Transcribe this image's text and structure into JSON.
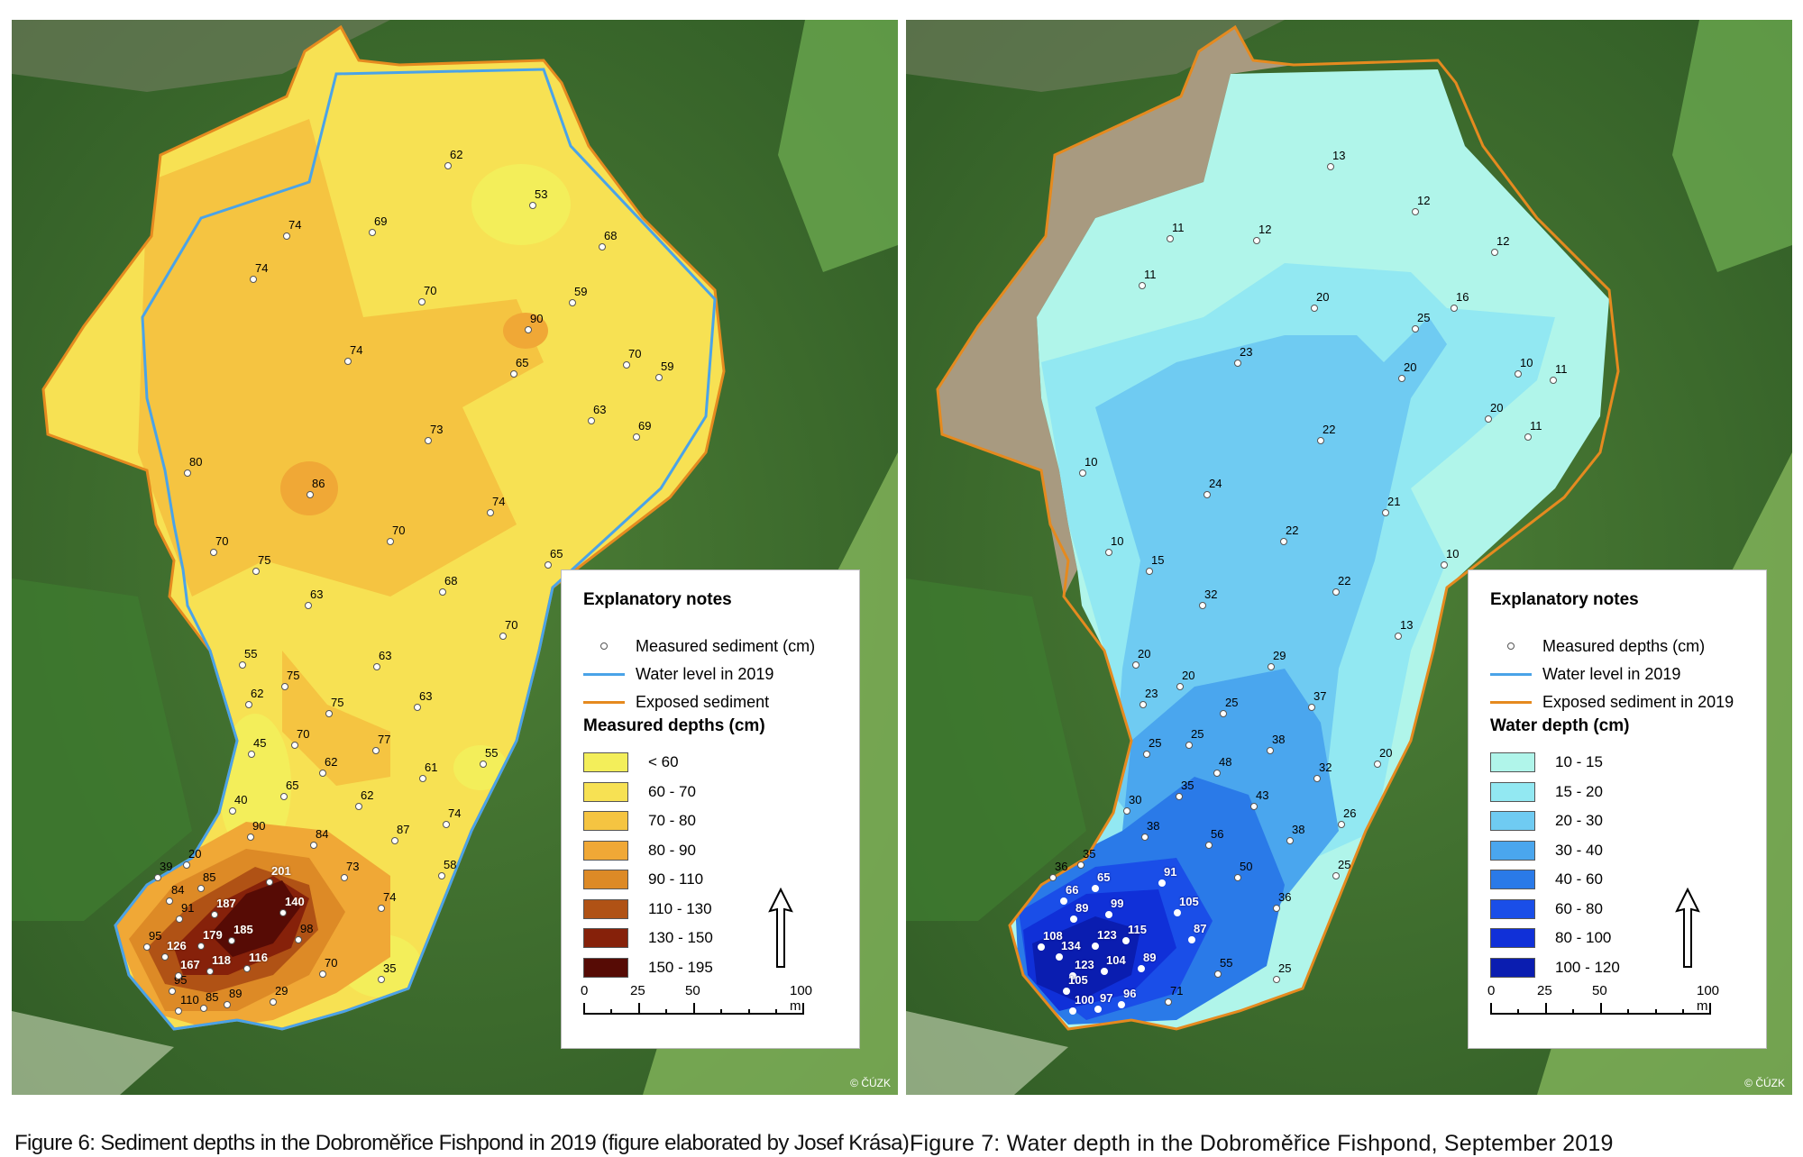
{
  "figure1": {
    "caption": "Figure 6: Sediment depths in the Dobroměřice Fishpond in 2019 (figure elaborated by Josef Krása)",
    "copyright": "© ČÚZK",
    "legend": {
      "title": "Explanatory notes",
      "point_label": "Measured sediment (cm)",
      "water_label": "Water level in 2019",
      "exposed_label": "Exposed sediment",
      "classes_title": "Measured depths (cm)",
      "classes": [
        {
          "label": "< 60",
          "color": "#f3ee5a"
        },
        {
          "label": "60 - 70",
          "color": "#f7e153"
        },
        {
          "label": "70 - 80",
          "color": "#f5c441"
        },
        {
          "label": "80 - 90",
          "color": "#f0a836"
        },
        {
          "label": "90 - 110",
          "color": "#dd8a26"
        },
        {
          "label": "110 - 130",
          "color": "#b05215"
        },
        {
          "label": "130 - 150",
          "color": "#86210a"
        },
        {
          "label": "150 - 195",
          "color": "#560b05"
        }
      ],
      "scale": {
        "ticks": [
          "0",
          "25",
          "50",
          "100 m"
        ]
      }
    },
    "points": [
      {
        "v": "62",
        "x": 484,
        "y": 162
      },
      {
        "v": "53",
        "x": 578,
        "y": 206
      },
      {
        "v": "74",
        "x": 305,
        "y": 240
      },
      {
        "v": "69",
        "x": 400,
        "y": 236
      },
      {
        "v": "68",
        "x": 655,
        "y": 252
      },
      {
        "v": "74",
        "x": 268,
        "y": 288
      },
      {
        "v": "70",
        "x": 455,
        "y": 313
      },
      {
        "v": "59",
        "x": 622,
        "y": 314
      },
      {
        "v": "90",
        "x": 573,
        "y": 344
      },
      {
        "v": "74",
        "x": 373,
        "y": 379
      },
      {
        "v": "65",
        "x": 557,
        "y": 393
      },
      {
        "v": "70",
        "x": 682,
        "y": 383
      },
      {
        "v": "59",
        "x": 718,
        "y": 397
      },
      {
        "v": "63",
        "x": 643,
        "y": 445
      },
      {
        "v": "69",
        "x": 693,
        "y": 463
      },
      {
        "v": "73",
        "x": 462,
        "y": 467
      },
      {
        "v": "80",
        "x": 195,
        "y": 503
      },
      {
        "v": "86",
        "x": 331,
        "y": 527
      },
      {
        "v": "74",
        "x": 531,
        "y": 547
      },
      {
        "v": "70",
        "x": 420,
        "y": 579
      },
      {
        "v": "70",
        "x": 224,
        "y": 591
      },
      {
        "v": "75",
        "x": 271,
        "y": 612
      },
      {
        "v": "65",
        "x": 595,
        "y": 605
      },
      {
        "v": "68",
        "x": 478,
        "y": 635
      },
      {
        "v": "63",
        "x": 329,
        "y": 650
      },
      {
        "v": "70",
        "x": 545,
        "y": 684
      },
      {
        "v": "55",
        "x": 256,
        "y": 716
      },
      {
        "v": "63",
        "x": 405,
        "y": 718
      },
      {
        "v": "75",
        "x": 303,
        "y": 740
      },
      {
        "v": "62",
        "x": 263,
        "y": 760
      },
      {
        "v": "75",
        "x": 352,
        "y": 770
      },
      {
        "v": "63",
        "x": 450,
        "y": 763
      },
      {
        "v": "45",
        "x": 266,
        "y": 815
      },
      {
        "v": "70",
        "x": 314,
        "y": 805
      },
      {
        "v": "77",
        "x": 404,
        "y": 811
      },
      {
        "v": "55",
        "x": 523,
        "y": 826
      },
      {
        "v": "62",
        "x": 345,
        "y": 836
      },
      {
        "v": "61",
        "x": 456,
        "y": 842
      },
      {
        "v": "65",
        "x": 302,
        "y": 862
      },
      {
        "v": "62",
        "x": 385,
        "y": 873
      },
      {
        "v": "40",
        "x": 245,
        "y": 878
      },
      {
        "v": "74",
        "x": 482,
        "y": 893
      },
      {
        "v": "90",
        "x": 265,
        "y": 907
      },
      {
        "v": "84",
        "x": 335,
        "y": 916
      },
      {
        "v": "87",
        "x": 425,
        "y": 911
      },
      {
        "v": "73",
        "x": 369,
        "y": 952
      },
      {
        "v": "58",
        "x": 477,
        "y": 950
      },
      {
        "v": "39",
        "x": 162,
        "y": 952
      },
      {
        "v": "20",
        "x": 194,
        "y": 938
      },
      {
        "v": "85",
        "x": 210,
        "y": 964
      },
      {
        "v": "84",
        "x": 175,
        "y": 978
      },
      {
        "v": "74",
        "x": 410,
        "y": 986
      },
      {
        "v": "91",
        "x": 186,
        "y": 998
      },
      {
        "v": "95",
        "x": 150,
        "y": 1029
      },
      {
        "v": "98",
        "x": 318,
        "y": 1021
      },
      {
        "v": "70",
        "x": 345,
        "y": 1059
      },
      {
        "v": "35",
        "x": 410,
        "y": 1065
      },
      {
        "v": "95",
        "x": 178,
        "y": 1078
      },
      {
        "v": "110",
        "x": 185,
        "y": 1100
      },
      {
        "v": "85",
        "x": 213,
        "y": 1097
      },
      {
        "v": "89",
        "x": 239,
        "y": 1093
      },
      {
        "v": "29",
        "x": 290,
        "y": 1090
      },
      {
        "v": "201",
        "x": 286,
        "y": 957,
        "dark": true
      },
      {
        "v": "187",
        "x": 225,
        "y": 993,
        "dark": true
      },
      {
        "v": "140",
        "x": 301,
        "y": 991,
        "dark": true
      },
      {
        "v": "185",
        "x": 244,
        "y": 1022,
        "dark": true
      },
      {
        "v": "179",
        "x": 210,
        "y": 1028,
        "dark": true
      },
      {
        "v": "126",
        "x": 170,
        "y": 1040,
        "dark": true
      },
      {
        "v": "116",
        "x": 261,
        "y": 1053,
        "dark": true
      },
      {
        "v": "118",
        "x": 220,
        "y": 1056,
        "dark": true
      },
      {
        "v": "167",
        "x": 185,
        "y": 1061,
        "dark": true
      }
    ]
  },
  "figure2": {
    "caption": "Figure 7: Water depth in the Dobroměřice Fishpond, September 2019",
    "copyright": "© ČÚZK",
    "legend": {
      "title": "Explanatory notes",
      "point_label": "Measured depths (cm)",
      "water_label": "Water level in 2019",
      "exposed_label": "Exposed sediment in 2019",
      "classes_title": "Water depth (cm)",
      "classes": [
        {
          "label": "10 - 15",
          "color": "#b0f5ea"
        },
        {
          "label": "15 - 20",
          "color": "#92e8f2"
        },
        {
          "label": "20 - 30",
          "color": "#6fcbf2"
        },
        {
          "label": "30 - 40",
          "color": "#4aa6ee"
        },
        {
          "label": "40 - 60",
          "color": "#2a7ae8"
        },
        {
          "label": "60 - 80",
          "color": "#1a4ee8"
        },
        {
          "label": "80 - 100",
          "color": "#1030d8"
        },
        {
          "label": "100 - 120",
          "color": "#0a1db0"
        }
      ],
      "scale": {
        "ticks": [
          "0",
          "25",
          "50",
          "100 m"
        ]
      }
    },
    "points": [
      {
        "v": "13",
        "x": 471,
        "y": 163
      },
      {
        "v": "12",
        "x": 565,
        "y": 213
      },
      {
        "v": "11",
        "x": 293,
        "y": 243
      },
      {
        "v": "12",
        "x": 389,
        "y": 245
      },
      {
        "v": "12",
        "x": 653,
        "y": 258
      },
      {
        "v": "11",
        "x": 262,
        "y": 295
      },
      {
        "v": "16",
        "x": 608,
        "y": 320
      },
      {
        "v": "20",
        "x": 453,
        "y": 320
      },
      {
        "v": "25",
        "x": 565,
        "y": 343
      },
      {
        "v": "23",
        "x": 368,
        "y": 381
      },
      {
        "v": "20",
        "x": 550,
        "y": 398
      },
      {
        "v": "10",
        "x": 679,
        "y": 393
      },
      {
        "v": "11",
        "x": 718,
        "y": 400
      },
      {
        "v": "20",
        "x": 646,
        "y": 443
      },
      {
        "v": "11",
        "x": 690,
        "y": 463
      },
      {
        "v": "22",
        "x": 460,
        "y": 467
      },
      {
        "v": "10",
        "x": 196,
        "y": 503
      },
      {
        "v": "24",
        "x": 334,
        "y": 527
      },
      {
        "v": "21",
        "x": 532,
        "y": 547
      },
      {
        "v": "22",
        "x": 419,
        "y": 579
      },
      {
        "v": "10",
        "x": 225,
        "y": 591
      },
      {
        "v": "15",
        "x": 270,
        "y": 612
      },
      {
        "v": "10",
        "x": 597,
        "y": 605
      },
      {
        "v": "22",
        "x": 477,
        "y": 635
      },
      {
        "v": "32",
        "x": 329,
        "y": 650
      },
      {
        "v": "13",
        "x": 546,
        "y": 684
      },
      {
        "v": "20",
        "x": 255,
        "y": 716
      },
      {
        "v": "29",
        "x": 405,
        "y": 718
      },
      {
        "v": "20",
        "x": 304,
        "y": 740
      },
      {
        "v": "23",
        "x": 263,
        "y": 760
      },
      {
        "v": "25",
        "x": 352,
        "y": 770
      },
      {
        "v": "37",
        "x": 450,
        "y": 763
      },
      {
        "v": "25",
        "x": 267,
        "y": 815
      },
      {
        "v": "25",
        "x": 314,
        "y": 805
      },
      {
        "v": "38",
        "x": 404,
        "y": 811
      },
      {
        "v": "20",
        "x": 523,
        "y": 826
      },
      {
        "v": "48",
        "x": 345,
        "y": 836
      },
      {
        "v": "32",
        "x": 456,
        "y": 842
      },
      {
        "v": "35",
        "x": 303,
        "y": 862
      },
      {
        "v": "43",
        "x": 386,
        "y": 873
      },
      {
        "v": "30",
        "x": 245,
        "y": 878
      },
      {
        "v": "26",
        "x": 483,
        "y": 893
      },
      {
        "v": "38",
        "x": 265,
        "y": 907
      },
      {
        "v": "56",
        "x": 336,
        "y": 916
      },
      {
        "v": "38",
        "x": 426,
        "y": 911
      },
      {
        "v": "50",
        "x": 368,
        "y": 952
      },
      {
        "v": "25",
        "x": 477,
        "y": 950
      },
      {
        "v": "36",
        "x": 163,
        "y": 952
      },
      {
        "v": "35",
        "x": 194,
        "y": 938
      },
      {
        "v": "36",
        "x": 411,
        "y": 986
      },
      {
        "v": "55",
        "x": 346,
        "y": 1059
      },
      {
        "v": "25",
        "x": 411,
        "y": 1065
      },
      {
        "v": "71",
        "x": 291,
        "y": 1090
      },
      {
        "v": "65",
        "x": 210,
        "y": 964,
        "dark": true
      },
      {
        "v": "66",
        "x": 175,
        "y": 978,
        "dark": true
      },
      {
        "v": "91",
        "x": 284,
        "y": 958,
        "dark": true
      },
      {
        "v": "99",
        "x": 225,
        "y": 993,
        "dark": true
      },
      {
        "v": "89",
        "x": 186,
        "y": 998,
        "dark": true
      },
      {
        "v": "105",
        "x": 301,
        "y": 991,
        "dark": true
      },
      {
        "v": "115",
        "x": 244,
        "y": 1022,
        "dark": true
      },
      {
        "v": "87",
        "x": 317,
        "y": 1021,
        "dark": true
      },
      {
        "v": "108",
        "x": 150,
        "y": 1029,
        "dark": true
      },
      {
        "v": "123",
        "x": 210,
        "y": 1028,
        "dark": true
      },
      {
        "v": "134",
        "x": 170,
        "y": 1040,
        "dark": true
      },
      {
        "v": "104",
        "x": 220,
        "y": 1056,
        "dark": true
      },
      {
        "v": "89",
        "x": 261,
        "y": 1053,
        "dark": true
      },
      {
        "v": "123",
        "x": 185,
        "y": 1061,
        "dark": true
      },
      {
        "v": "105",
        "x": 178,
        "y": 1078,
        "dark": true
      },
      {
        "v": "96",
        "x": 239,
        "y": 1093,
        "dark": true
      },
      {
        "v": "100",
        "x": 185,
        "y": 1100,
        "dark": true
      },
      {
        "v": "97",
        "x": 213,
        "y": 1098,
        "dark": true
      }
    ]
  },
  "colors": {
    "water_line": "#4aa3e8",
    "exposed_line": "#e58a1f"
  }
}
